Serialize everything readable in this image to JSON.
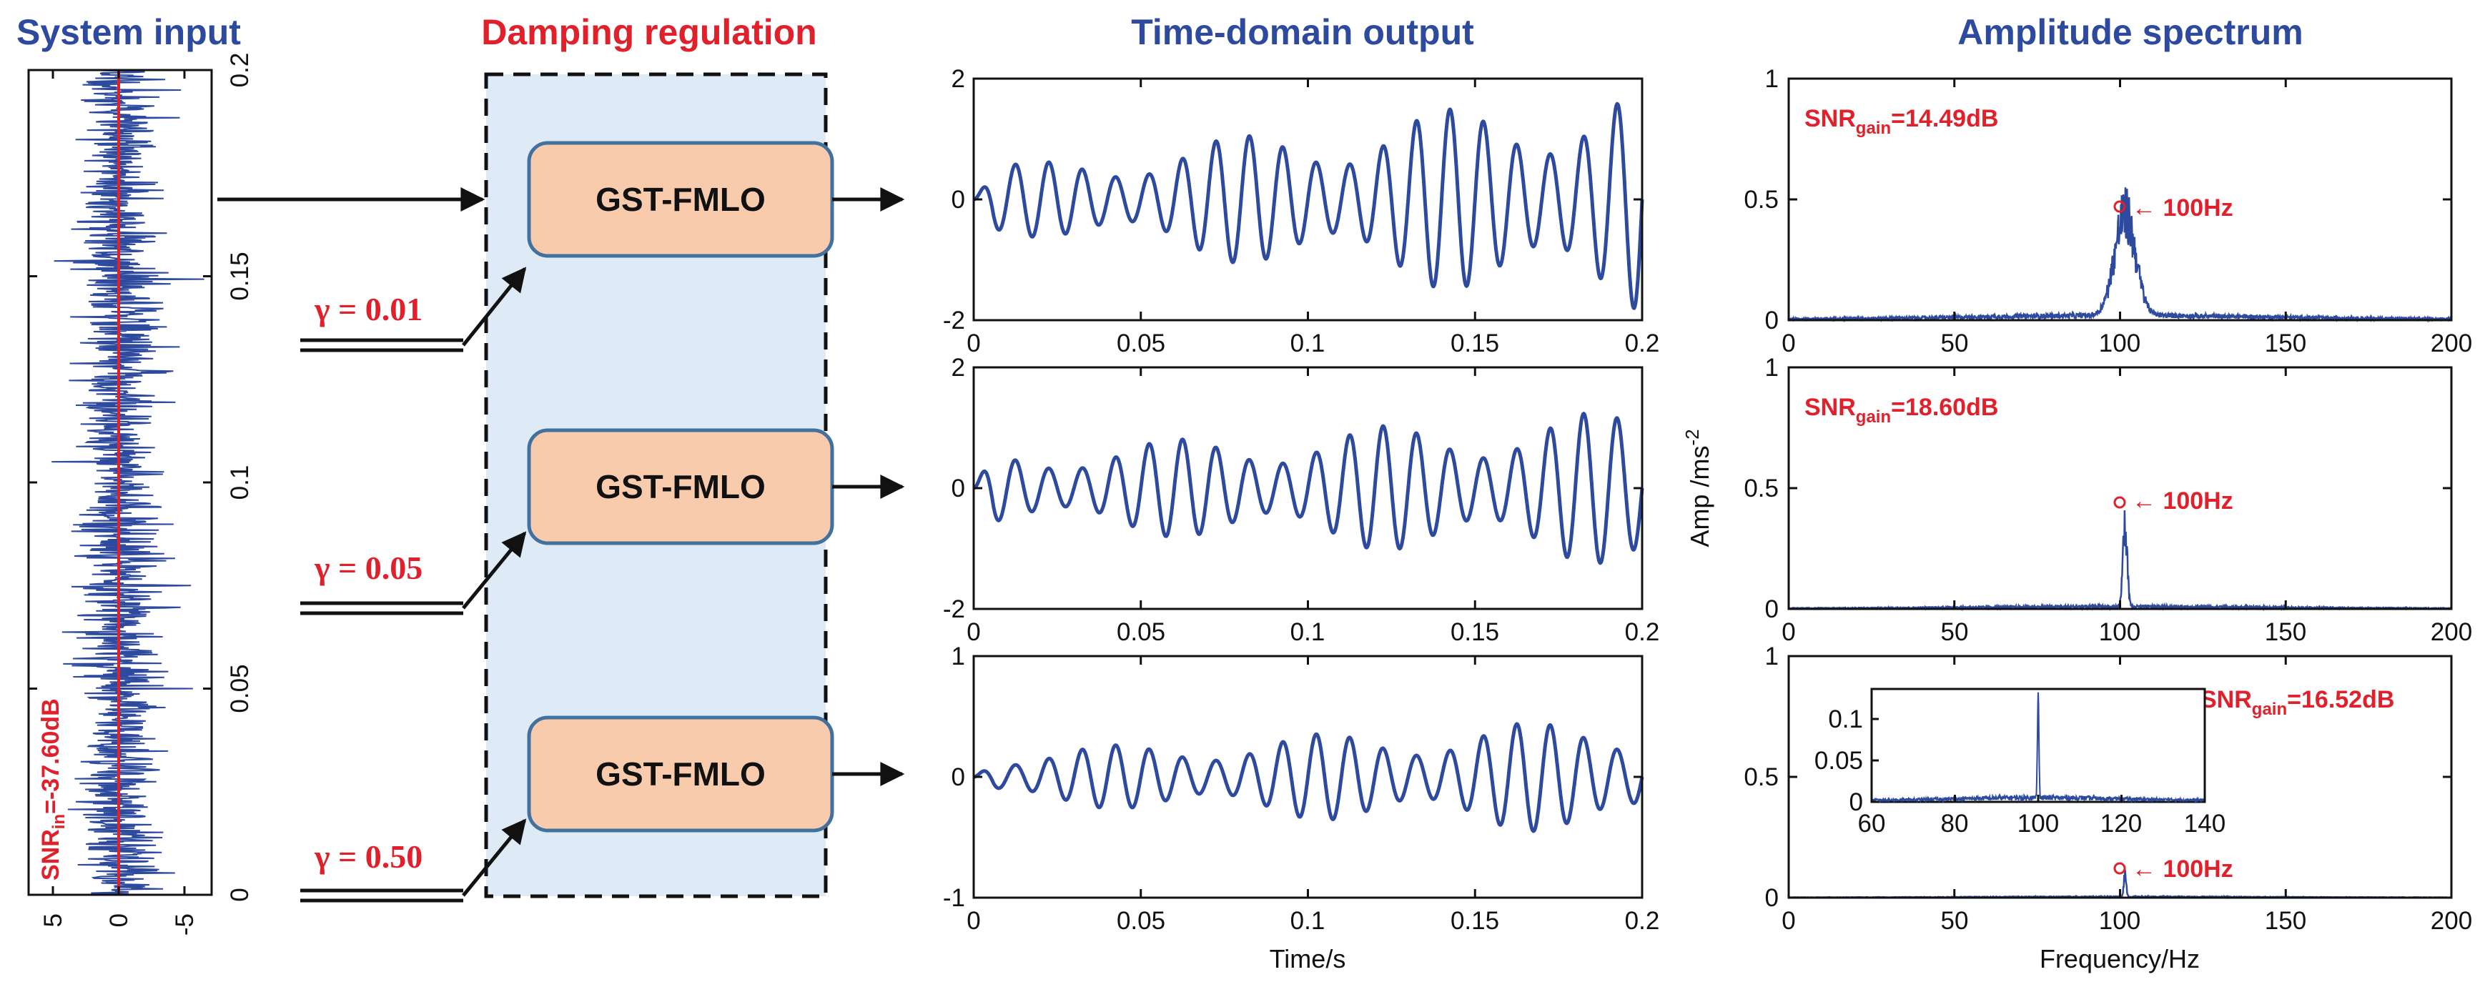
{
  "titles": {
    "input": "System input",
    "damping": "Damping regulation",
    "time": "Time-domain output",
    "spectrum": "Amplitude spectrum"
  },
  "blocks": [
    {
      "label": "GST-FMLO",
      "gamma": "γ = 0.01"
    },
    {
      "label": "GST-FMLO",
      "gamma": "γ = 0.05"
    },
    {
      "label": "GST-FMLO",
      "gamma": "γ = 0.50"
    }
  ],
  "input_panel": {
    "snr_base": "SNR",
    "snr_sub": "in",
    "snr_tail": "=-37.60dB",
    "time_ticks": [
      "0",
      "0.05",
      "0.1",
      "0.15",
      "0.2"
    ],
    "amp_ticks": [
      "5",
      "0",
      "-5"
    ]
  },
  "time_panel": {
    "xlabel": "Time/s",
    "x_ticks": [
      "0",
      "0.05",
      "0.1",
      "0.15",
      "0.2"
    ],
    "y_ticks": [
      [
        "-2",
        "0",
        "2"
      ],
      [
        "-2",
        "0",
        "2"
      ],
      [
        "-1",
        "0",
        "1"
      ]
    ]
  },
  "spectrum_panel": {
    "xlabel": "Frequency/Hz",
    "ylabel_base": "Amp /ms",
    "ylabel_sup": "-2",
    "x_ticks": [
      "0",
      "50",
      "100",
      "150",
      "200"
    ],
    "y_ticks": [
      "0",
      "0.5",
      "1"
    ],
    "peak_label": "← 100Hz",
    "snr_base": "SNR",
    "snr_sub": "gain",
    "snr_values": [
      "=14.49dB",
      "=18.60dB",
      "=16.52dB"
    ],
    "inset_x_ticks": [
      "60",
      "80",
      "100",
      "120",
      "140"
    ],
    "inset_y_ticks": [
      "0",
      "0.05",
      "0.1"
    ]
  },
  "colors": {
    "signal": "#2e4a9e",
    "accent": "#e0202a",
    "block_fill": "#f8cbad",
    "block_stroke": "#41719c",
    "region_fill": "#deebf7"
  },
  "chart_data": [
    {
      "type": "line",
      "panel": "system-input",
      "xlim": [
        0,
        0.2
      ],
      "ylim": [
        -7,
        7
      ],
      "signal": "broadband noise",
      "snr_in_db": -37.6
    },
    {
      "type": "line",
      "panel": "time-output-1",
      "gamma": 0.01,
      "xlim": [
        0,
        0.2
      ],
      "ylim": [
        -2,
        2
      ],
      "freq_hz": 100,
      "amplitude_start": 0.5,
      "amplitude_end": 1.9
    },
    {
      "type": "line",
      "panel": "time-output-2",
      "gamma": 0.05,
      "xlim": [
        0,
        0.2
      ],
      "ylim": [
        -2,
        2
      ],
      "freq_hz": 100,
      "amplitude_start": 0.6,
      "amplitude_end": 1.3
    },
    {
      "type": "line",
      "panel": "time-output-3",
      "gamma": 0.5,
      "xlim": [
        0,
        0.2
      ],
      "ylim": [
        -1,
        1
      ],
      "freq_hz": 100,
      "amplitude_start": 0.2,
      "amplitude_end": 0.5
    },
    {
      "type": "line",
      "panel": "spectrum-1",
      "xlim": [
        0,
        200
      ],
      "ylim": [
        0,
        1
      ],
      "peak_freq_hz": 100,
      "peak_marker_amp": 0.47,
      "max_amp": 0.54,
      "snr_gain_db": 14.49
    },
    {
      "type": "line",
      "panel": "spectrum-2",
      "xlim": [
        0,
        200
      ],
      "ylim": [
        0,
        1
      ],
      "peak_freq_hz": 100,
      "peak_marker_amp": 0.44,
      "snr_gain_db": 18.6
    },
    {
      "type": "line",
      "panel": "spectrum-3",
      "xlim": [
        0,
        200
      ],
      "ylim": [
        0,
        1
      ],
      "peak_freq_hz": 100,
      "peak_marker_amp": 0.12,
      "snr_gain_db": 16.52,
      "inset": {
        "xlim": [
          60,
          140
        ],
        "ylim": [
          0,
          0.12
        ],
        "peak_amp": 0.11
      }
    }
  ]
}
